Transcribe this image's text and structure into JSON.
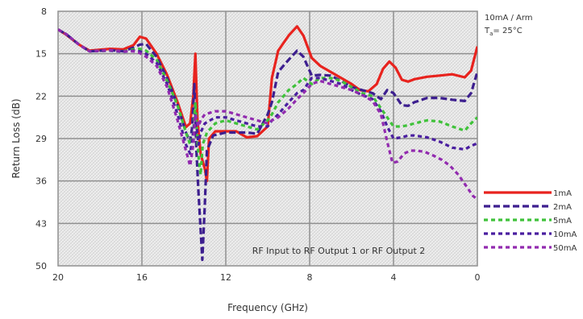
{
  "chart_data": {
    "type": "line",
    "xlabel": "Frequency (GHz)",
    "ylabel": "Return Loss (dB)",
    "xlim": [
      20,
      0
    ],
    "ylim": [
      8,
      50
    ],
    "y_inverted": true,
    "x_ticks": [
      "20",
      "16",
      "12",
      "8",
      "4",
      "0"
    ],
    "y_ticks": [
      "8",
      "15",
      "22",
      "29",
      "36",
      "43",
      "50"
    ],
    "grid": true,
    "legend_position": "bottom-right",
    "conditions": [
      "10mA / Arm",
      "T",
      "a",
      "= 25°C"
    ],
    "annotation": "RF Input to RF Output 1 or RF Output 2",
    "series": [
      {
        "name": "1mA",
        "color": "#e8231e",
        "dash": "solid",
        "points": [
          [
            20,
            11
          ],
          [
            19.6,
            11.9
          ],
          [
            19,
            13.5
          ],
          [
            18.5,
            14.5
          ],
          [
            17.5,
            14.2
          ],
          [
            16.9,
            14.3
          ],
          [
            16.4,
            13.6
          ],
          [
            16.1,
            12.2
          ],
          [
            15.8,
            12.5
          ],
          [
            15.3,
            15
          ],
          [
            14.8,
            18.5
          ],
          [
            14.3,
            23
          ],
          [
            13.9,
            27.1
          ],
          [
            13.7,
            26.5
          ],
          [
            13.55,
            22
          ],
          [
            13.45,
            15
          ],
          [
            13.35,
            26
          ],
          [
            13.2,
            31.5
          ],
          [
            13,
            34
          ],
          [
            12.9,
            36
          ],
          [
            12.8,
            29
          ],
          [
            12.5,
            27.8
          ],
          [
            11.5,
            27.8
          ],
          [
            11,
            28.8
          ],
          [
            10.5,
            28.6
          ],
          [
            10,
            27
          ],
          [
            9.8,
            19
          ],
          [
            9.5,
            14.5
          ],
          [
            9,
            12
          ],
          [
            8.6,
            10.5
          ],
          [
            8.3,
            12
          ],
          [
            7.9,
            15.7
          ],
          [
            7.5,
            17
          ],
          [
            7,
            18
          ],
          [
            6.5,
            19
          ],
          [
            6,
            20
          ],
          [
            5.6,
            21
          ],
          [
            5.2,
            21.2
          ],
          [
            4.8,
            20
          ],
          [
            4.5,
            17.5
          ],
          [
            4.2,
            16.3
          ],
          [
            3.9,
            17.3
          ],
          [
            3.6,
            19.3
          ],
          [
            3.3,
            19.6
          ],
          [
            3,
            19.2
          ],
          [
            2.4,
            18.8
          ],
          [
            1.8,
            18.6
          ],
          [
            1.2,
            18.4
          ],
          [
            0.6,
            18.9
          ],
          [
            0.3,
            17.8
          ],
          [
            0,
            13.8
          ]
        ]
      },
      {
        "name": "2mA",
        "color": "#3d1f8f",
        "dash": "8 4",
        "points": [
          [
            20,
            11
          ],
          [
            19.6,
            11.8
          ],
          [
            19,
            13.5
          ],
          [
            18.5,
            14.6
          ],
          [
            17.5,
            14.4
          ],
          [
            16.9,
            14.6
          ],
          [
            16.4,
            14
          ],
          [
            16.1,
            13.5
          ],
          [
            15.8,
            13.4
          ],
          [
            15.3,
            15.5
          ],
          [
            14.8,
            19
          ],
          [
            14.3,
            23.5
          ],
          [
            13.9,
            28
          ],
          [
            13.7,
            29.5
          ],
          [
            13.6,
            27
          ],
          [
            13.5,
            20
          ],
          [
            13.4,
            31
          ],
          [
            13.3,
            38
          ],
          [
            13.2,
            44
          ],
          [
            13.12,
            49
          ],
          [
            13,
            40
          ],
          [
            12.9,
            31
          ],
          [
            12.6,
            28.5
          ],
          [
            12,
            28
          ],
          [
            11.5,
            28
          ],
          [
            11,
            28
          ],
          [
            10.5,
            28.2
          ],
          [
            10,
            25
          ],
          [
            9.8,
            23
          ],
          [
            9.5,
            18
          ],
          [
            9,
            16
          ],
          [
            8.6,
            14.5
          ],
          [
            8.3,
            15.5
          ],
          [
            7.9,
            18.6
          ],
          [
            7.5,
            18.5
          ],
          [
            7,
            18.6
          ],
          [
            6.5,
            19.5
          ],
          [
            6,
            20.5
          ],
          [
            5.5,
            21
          ],
          [
            5,
            21.5
          ],
          [
            4.6,
            22.5
          ],
          [
            4.3,
            21
          ],
          [
            4,
            21.5
          ],
          [
            3.6,
            23.5
          ],
          [
            3.3,
            23.6
          ],
          [
            3,
            23
          ],
          [
            2.4,
            22.3
          ],
          [
            1.8,
            22.3
          ],
          [
            1.2,
            22.6
          ],
          [
            0.6,
            22.8
          ],
          [
            0.3,
            21.5
          ],
          [
            0,
            18
          ]
        ]
      },
      {
        "name": "5mA",
        "color": "#3fc23a",
        "dash": "5 4",
        "points": [
          [
            20,
            11
          ],
          [
            19.6,
            11.8
          ],
          [
            19,
            13.5
          ],
          [
            18.5,
            14.6
          ],
          [
            17.5,
            14.5
          ],
          [
            16.9,
            14.6
          ],
          [
            16.4,
            14.3
          ],
          [
            16.1,
            14.2
          ],
          [
            15.8,
            14.5
          ],
          [
            15.3,
            16
          ],
          [
            14.8,
            19.5
          ],
          [
            14.3,
            23.5
          ],
          [
            13.9,
            28
          ],
          [
            13.7,
            30
          ],
          [
            13.55,
            28
          ],
          [
            13.45,
            23
          ],
          [
            13.3,
            32
          ],
          [
            13.2,
            35
          ],
          [
            13.1,
            30
          ],
          [
            12.9,
            28
          ],
          [
            12.5,
            26.5
          ],
          [
            12,
            26
          ],
          [
            11.5,
            26.5
          ],
          [
            11,
            27
          ],
          [
            10.5,
            27.5
          ],
          [
            10,
            26
          ],
          [
            9.8,
            25
          ],
          [
            9.5,
            23
          ],
          [
            9,
            21
          ],
          [
            8.6,
            20
          ],
          [
            8.3,
            19
          ],
          [
            7.9,
            20
          ],
          [
            7.5,
            19
          ],
          [
            7,
            19
          ],
          [
            6.5,
            19.5
          ],
          [
            6,
            20.5
          ],
          [
            5.5,
            21.5
          ],
          [
            5,
            22
          ],
          [
            4.6,
            24
          ],
          [
            4.3,
            25.5
          ],
          [
            4,
            27
          ],
          [
            3.6,
            27
          ],
          [
            3.3,
            26.8
          ],
          [
            3,
            26.5
          ],
          [
            2.4,
            26
          ],
          [
            1.8,
            26.2
          ],
          [
            1.2,
            27
          ],
          [
            0.6,
            27.7
          ],
          [
            0.3,
            26.5
          ],
          [
            0,
            25.5
          ]
        ]
      },
      {
        "name": "10mA",
        "color": "#4a1ea0",
        "dash": "5 4",
        "points": [
          [
            20,
            11
          ],
          [
            19.6,
            11.8
          ],
          [
            19,
            13.5
          ],
          [
            18.5,
            14.6
          ],
          [
            17.5,
            14.5
          ],
          [
            16.9,
            14.7
          ],
          [
            16.4,
            14.5
          ],
          [
            16.1,
            14.6
          ],
          [
            15.8,
            15
          ],
          [
            15.3,
            16.5
          ],
          [
            14.8,
            20
          ],
          [
            14.3,
            25
          ],
          [
            13.9,
            30
          ],
          [
            13.7,
            31.5
          ],
          [
            13.55,
            28
          ],
          [
            13.45,
            25
          ],
          [
            13.3,
            30
          ],
          [
            13.2,
            28
          ],
          [
            13,
            26.5
          ],
          [
            12.5,
            25.5
          ],
          [
            12,
            25.5
          ],
          [
            11.5,
            26
          ],
          [
            11,
            26.5
          ],
          [
            10.5,
            27
          ],
          [
            10,
            27
          ],
          [
            9.8,
            26
          ],
          [
            9.5,
            25
          ],
          [
            9,
            23
          ],
          [
            8.6,
            21.5
          ],
          [
            8.3,
            21
          ],
          [
            7.9,
            19
          ],
          [
            7.5,
            19
          ],
          [
            7,
            19.5
          ],
          [
            6.5,
            20
          ],
          [
            6,
            21
          ],
          [
            5.5,
            21.8
          ],
          [
            5,
            22.5
          ],
          [
            4.6,
            24.5
          ],
          [
            4.3,
            27
          ],
          [
            4,
            29
          ],
          [
            3.6,
            28.8
          ],
          [
            3.3,
            28.5
          ],
          [
            3,
            28.5
          ],
          [
            2.4,
            28.8
          ],
          [
            1.8,
            29.5
          ],
          [
            1.2,
            30.5
          ],
          [
            0.6,
            30.8
          ],
          [
            0.3,
            30.2
          ],
          [
            0,
            29.8
          ]
        ]
      },
      {
        "name": "50mA",
        "color": "#922baf",
        "dash": "5 4",
        "points": [
          [
            20,
            11
          ],
          [
            19.6,
            11.8
          ],
          [
            19,
            13.5
          ],
          [
            18.5,
            14.6
          ],
          [
            17.5,
            14.4
          ],
          [
            16.9,
            14.6
          ],
          [
            16.4,
            14.6
          ],
          [
            16.1,
            14.9
          ],
          [
            15.8,
            15.5
          ],
          [
            15.3,
            17
          ],
          [
            14.8,
            20.5
          ],
          [
            14.3,
            26
          ],
          [
            13.9,
            31
          ],
          [
            13.7,
            33.5
          ],
          [
            13.55,
            30
          ],
          [
            13.45,
            25
          ],
          [
            13.3,
            27
          ],
          [
            13.2,
            26
          ],
          [
            13,
            25
          ],
          [
            12.5,
            24.5
          ],
          [
            12,
            24.5
          ],
          [
            11.5,
            25
          ],
          [
            11,
            25.5
          ],
          [
            10.5,
            26
          ],
          [
            10,
            26.5
          ],
          [
            9.8,
            26
          ],
          [
            9.5,
            25.5
          ],
          [
            9,
            24
          ],
          [
            8.6,
            22.5
          ],
          [
            8.3,
            21.5
          ],
          [
            7.9,
            20
          ],
          [
            7.5,
            19.5
          ],
          [
            7,
            20
          ],
          [
            6.5,
            20.5
          ],
          [
            6,
            21
          ],
          [
            5.5,
            21.8
          ],
          [
            5,
            22.8
          ],
          [
            4.6,
            25
          ],
          [
            4.3,
            29.5
          ],
          [
            4.05,
            33
          ],
          [
            3.8,
            32.8
          ],
          [
            3.5,
            31.5
          ],
          [
            3.2,
            31
          ],
          [
            2.9,
            31
          ],
          [
            2.5,
            31.2
          ],
          [
            2.1,
            31.8
          ],
          [
            1.7,
            32.5
          ],
          [
            1.3,
            33.5
          ],
          [
            0.9,
            35
          ],
          [
            0.5,
            37
          ],
          [
            0.2,
            38.5
          ],
          [
            0,
            39
          ]
        ]
      }
    ]
  }
}
